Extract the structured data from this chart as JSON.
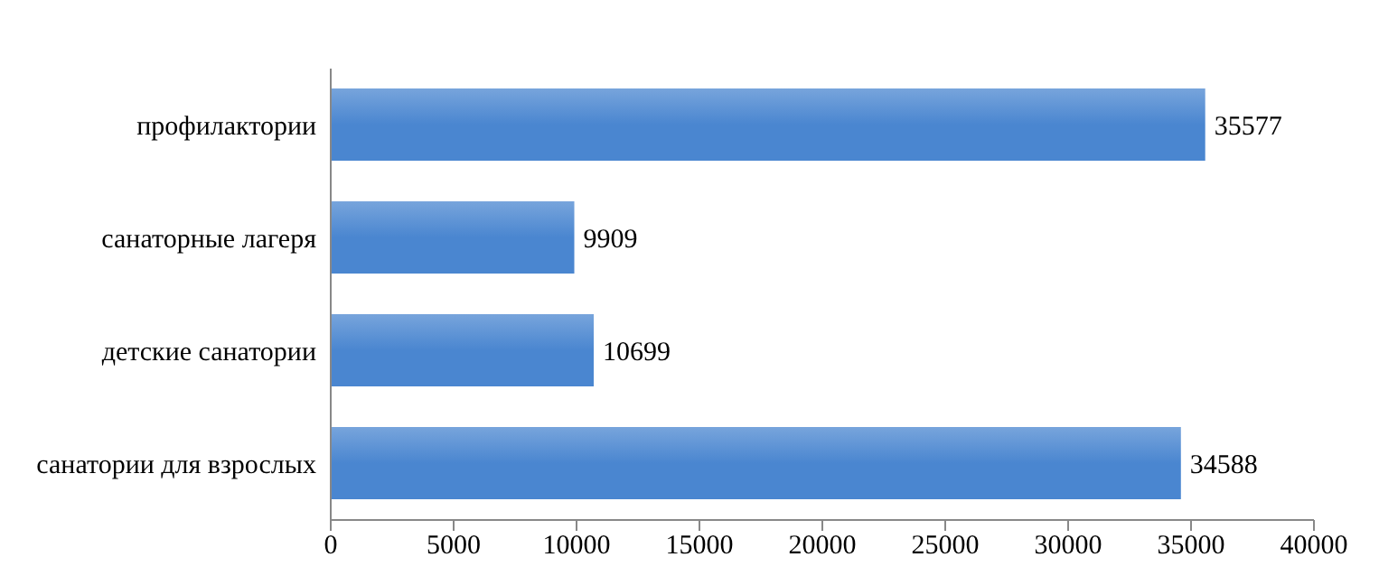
{
  "chart_data": {
    "type": "bar",
    "orientation": "horizontal",
    "categories": [
      "профилактории",
      "санаторные лагеря",
      "детские санатории",
      "санатории для взрослых"
    ],
    "values": [
      35577,
      9909,
      10699,
      34588
    ],
    "color": "#4a86d0",
    "xlim": [
      0,
      40000
    ],
    "xticks": [
      0,
      5000,
      10000,
      15000,
      20000,
      25000,
      30000,
      35000,
      40000
    ],
    "data_labels": true,
    "grid": false,
    "legend": false
  }
}
